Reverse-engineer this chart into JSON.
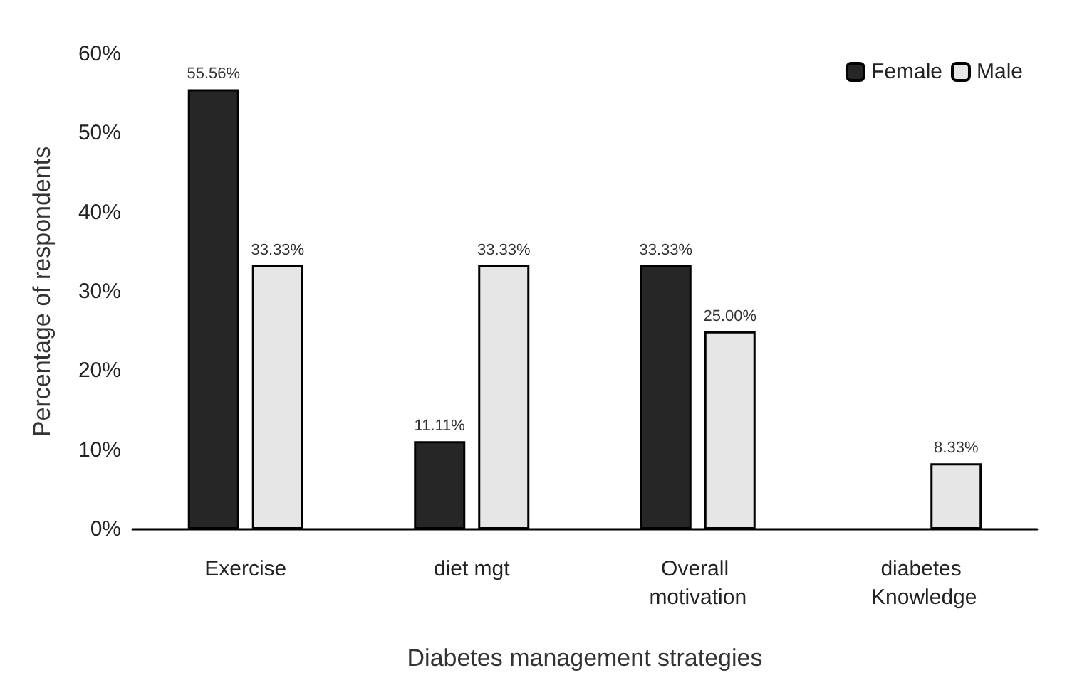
{
  "chart_data": {
    "type": "bar",
    "xlabel": "Diabetes management strategies",
    "ylabel": "Percentage of respondents",
    "categories": [
      "Exercise",
      "diet mgt",
      "Overall motivation",
      "diabetes Knowledge"
    ],
    "series": [
      {
        "name": "Female",
        "color": "#262626",
        "values": [
          55.56,
          11.11,
          33.33,
          null
        ],
        "value_labels": [
          "55.56%",
          "11.11%",
          "33.33%",
          null
        ]
      },
      {
        "name": "Male",
        "color": "#e6e6e6",
        "values": [
          33.33,
          33.33,
          25.0,
          8.33
        ],
        "value_labels": [
          "33.33%",
          "33.33%",
          "25.00%",
          "8.33%"
        ]
      }
    ],
    "ylim": [
      0,
      60
    ],
    "yticks": [
      {
        "value": 0,
        "label": "0%"
      },
      {
        "value": 10,
        "label": "10%"
      },
      {
        "value": 20,
        "label": "20%"
      },
      {
        "value": 30,
        "label": "30%"
      },
      {
        "value": 40,
        "label": "40%"
      },
      {
        "value": 50,
        "label": "50%"
      },
      {
        "value": 60,
        "label": "60%"
      }
    ],
    "grid": false,
    "legend": "top right"
  }
}
